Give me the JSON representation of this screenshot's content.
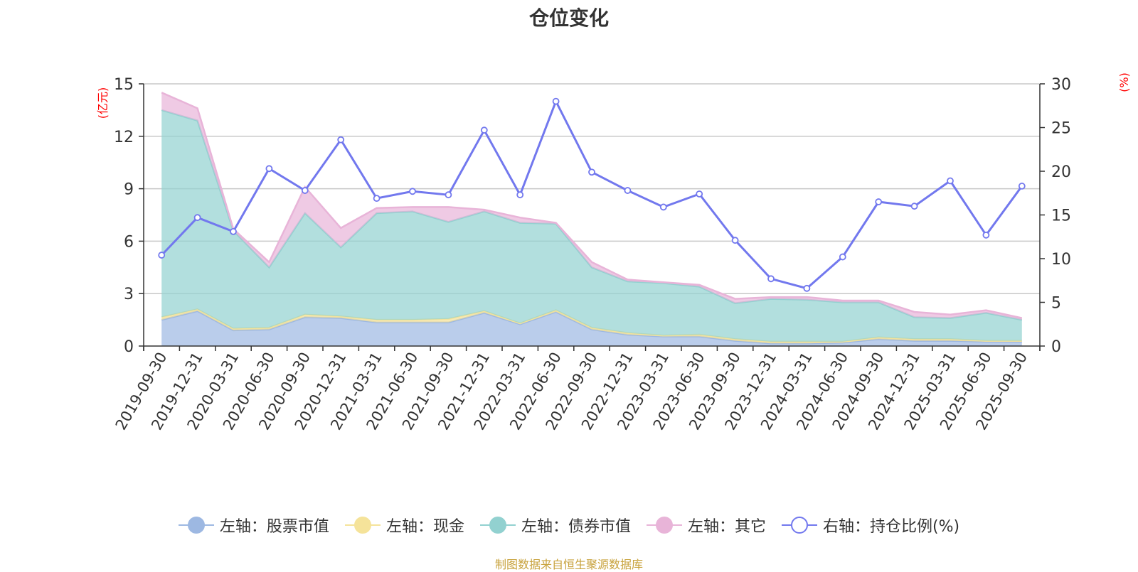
{
  "title": "仓位变化",
  "source_note": "制图数据来自恒生聚源数据库",
  "colors": {
    "stock": "#9db8e2",
    "cash": "#f5e39a",
    "bond": "#92d1d0",
    "other": "#e8b4d8",
    "ratio": "#7278ee",
    "axis_unit": "#ff0000"
  },
  "legend": [
    {
      "label": "左轴：股票市值",
      "color": "#9db8e2",
      "kind": "area"
    },
    {
      "label": "左轴：现金",
      "color": "#f5e39a",
      "kind": "area"
    },
    {
      "label": "左轴：债券市值",
      "color": "#92d1d0",
      "kind": "area"
    },
    {
      "label": "左轴：其它",
      "color": "#e8b4d8",
      "kind": "area"
    },
    {
      "label": "右轴：持仓比例(%)",
      "color": "#7278ee",
      "kind": "line"
    }
  ],
  "chart_data": {
    "type": "area",
    "title": "仓位变化",
    "stacked": true,
    "x": [
      "2019-09-30",
      "2019-12-31",
      "2020-03-31",
      "2020-06-30",
      "2020-09-30",
      "2020-12-31",
      "2021-03-31",
      "2021-06-30",
      "2021-09-30",
      "2021-12-31",
      "2022-03-31",
      "2022-06-30",
      "2022-09-30",
      "2022-12-31",
      "2023-03-31",
      "2023-06-30",
      "2023-09-30",
      "2023-12-31",
      "2024-03-31",
      "2024-06-30",
      "2024-09-30",
      "2024-12-31",
      "2025-03-31",
      "2025-06-30",
      "2025-09-30"
    ],
    "left_axis": {
      "label": "(亿元)",
      "ylim": [
        0,
        15
      ],
      "ticks": [
        "0",
        "3",
        "6",
        "9",
        "12",
        "15"
      ],
      "tick_values": [
        0,
        3,
        6,
        9,
        12,
        15
      ]
    },
    "right_axis": {
      "label": "(%)",
      "ylim": [
        0,
        30
      ],
      "ticks": [
        "0",
        "5",
        "10",
        "15",
        "20",
        "25",
        "30"
      ],
      "tick_values": [
        0,
        5,
        10,
        15,
        20,
        25,
        30
      ]
    },
    "series": [
      {
        "name": "左轴：股票市值",
        "axis": "left",
        "values": [
          1.5,
          2.0,
          0.9,
          0.95,
          1.65,
          1.6,
          1.35,
          1.35,
          1.35,
          1.9,
          1.25,
          1.95,
          0.95,
          0.65,
          0.55,
          0.55,
          0.3,
          0.15,
          0.15,
          0.2,
          0.4,
          0.3,
          0.3,
          0.25,
          0.25
        ]
      },
      {
        "name": "左轴：现金",
        "axis": "left",
        "values": [
          0.15,
          0.1,
          0.1,
          0.1,
          0.15,
          0.1,
          0.15,
          0.15,
          0.2,
          0.1,
          0.05,
          0.1,
          0.1,
          0.1,
          0.05,
          0.1,
          0.1,
          0.1,
          0.1,
          0.05,
          0.1,
          0.1,
          0.1,
          0.05,
          0.05
        ]
      },
      {
        "name": "左轴：债券市值",
        "axis": "left",
        "values": [
          11.85,
          10.8,
          5.6,
          3.45,
          5.8,
          3.95,
          6.1,
          6.2,
          5.55,
          5.7,
          5.75,
          4.95,
          3.45,
          2.95,
          3.0,
          2.75,
          2.05,
          2.45,
          2.4,
          2.25,
          2.0,
          1.25,
          1.2,
          1.6,
          1.2
        ]
      },
      {
        "name": "左轴：其它",
        "axis": "left",
        "values": [
          1.0,
          0.7,
          0.1,
          0.3,
          1.5,
          1.1,
          0.3,
          0.25,
          0.85,
          0.1,
          0.3,
          0.05,
          0.3,
          0.1,
          0.05,
          0.1,
          0.25,
          0.1,
          0.15,
          0.1,
          0.1,
          0.3,
          0.2,
          0.15,
          0.1
        ]
      },
      {
        "name": "右轴：持仓比例(%)",
        "axis": "right",
        "values": [
          10.4,
          14.7,
          13.1,
          20.3,
          17.8,
          23.6,
          16.9,
          17.7,
          17.3,
          24.7,
          17.3,
          28.0,
          19.9,
          17.8,
          15.9,
          17.4,
          12.1,
          7.7,
          6.6,
          10.2,
          16.5,
          16.0,
          18.9,
          12.7,
          18.3
        ]
      }
    ]
  }
}
